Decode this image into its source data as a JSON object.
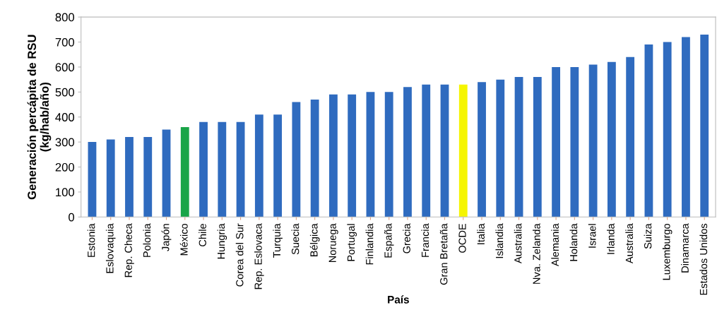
{
  "chart_data": {
    "type": "bar",
    "xlabel": "País",
    "ylabel": "Generación percápita de RSU\n(kg/hab/año)",
    "categories": [
      "Estonia",
      "Eslovaquia",
      "Rep. Checa",
      "Polonia",
      "Japón",
      "México",
      "Chile",
      "Hungria",
      "Corea del Sur",
      "Rep. Eslovaca",
      "Turquia",
      "Suecia",
      "Bélgica",
      "Noruega",
      "Portugal",
      "Finlandia",
      "España",
      "Grecia",
      "Francia",
      "Gran Bretaña",
      "OCDE",
      "Italia",
      "Islandia",
      "Australia",
      "Nva. Zelanda",
      "Alemania",
      "Holanda",
      "Israel",
      "Irlanda",
      "Australia",
      "Suiza",
      "Luxemburgo",
      "Dinamarca",
      "Estados Unidos"
    ],
    "values": [
      300,
      310,
      320,
      320,
      350,
      360,
      380,
      380,
      380,
      410,
      410,
      460,
      470,
      490,
      490,
      500,
      500,
      520,
      530,
      530,
      530,
      540,
      550,
      560,
      560,
      600,
      600,
      610,
      620,
      640,
      690,
      700,
      720,
      730
    ],
    "colors": [
      "#2f6bbf",
      "#2f6bbf",
      "#2f6bbf",
      "#2f6bbf",
      "#2f6bbf",
      "#1aa548",
      "#2f6bbf",
      "#2f6bbf",
      "#2f6bbf",
      "#2f6bbf",
      "#2f6bbf",
      "#2f6bbf",
      "#2f6bbf",
      "#2f6bbf",
      "#2f6bbf",
      "#2f6bbf",
      "#2f6bbf",
      "#2f6bbf",
      "#2f6bbf",
      "#2f6bbf",
      "#f5f500",
      "#2f6bbf",
      "#2f6bbf",
      "#2f6bbf",
      "#2f6bbf",
      "#2f6bbf",
      "#2f6bbf",
      "#2f6bbf",
      "#2f6bbf",
      "#2f6bbf",
      "#2f6bbf",
      "#2f6bbf",
      "#2f6bbf",
      "#2f6bbf"
    ],
    "ylim": [
      0,
      800
    ],
    "yticks": [
      0,
      100,
      200,
      300,
      400,
      500,
      600,
      700,
      800
    ],
    "grid": false,
    "legend": false
  }
}
